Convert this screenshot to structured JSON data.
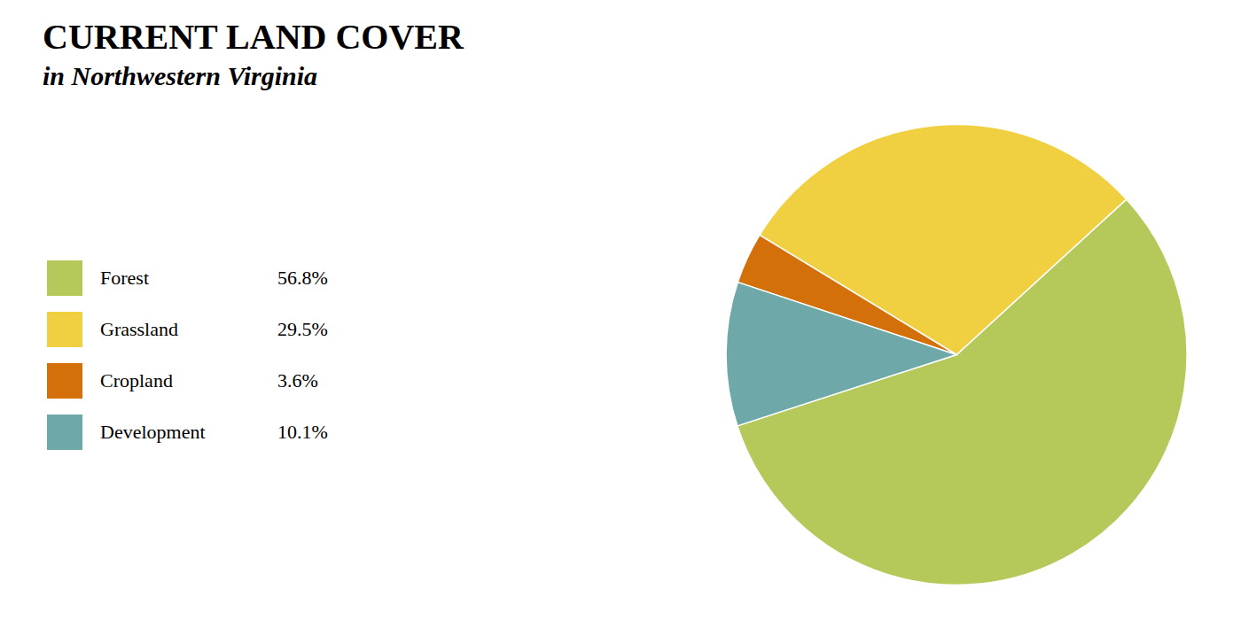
{
  "chart_data": {
    "type": "pie",
    "title": "CURRENT LAND COVER",
    "subtitle": "in Northwestern Virginia",
    "categories": [
      "Forest",
      "Grassland",
      "Cropland",
      "Development"
    ],
    "values": [
      56.8,
      29.5,
      3.6,
      10.1
    ],
    "value_labels": [
      "56.8%",
      "29.5%",
      "3.6%",
      "10.1%"
    ],
    "colors": [
      "#b5c95a",
      "#f0d040",
      "#d4700a",
      "#6fa8a8"
    ],
    "legend": "left"
  }
}
